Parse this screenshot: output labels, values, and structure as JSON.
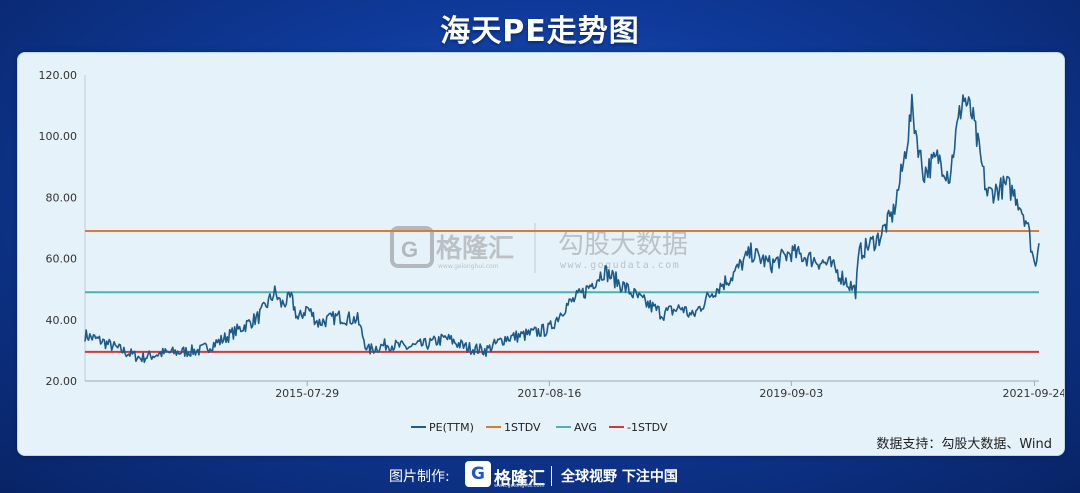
{
  "header": {
    "title": "海天PE走势图"
  },
  "watermark": {
    "brand": "格隆汇",
    "brand_sub": "www.gelonghui.com",
    "product": "勾股大数据",
    "url": "www.gogudata.com"
  },
  "source_note": "数据支持：勾股大数据、Wind",
  "footer": {
    "credit_label": "图片制作:",
    "brand": "格隆汇",
    "brand_sub": "www.gelonghui.com",
    "slogan": "全球视野 下注中国"
  },
  "chart_data": {
    "type": "line",
    "title": "",
    "xlabel": "",
    "ylabel": "",
    "ylim": [
      20,
      120
    ],
    "xlim": [
      "2013-09-10",
      "2021-10-08"
    ],
    "yticks": [
      "20.00",
      "40.00",
      "60.00",
      "80.00",
      "100.00",
      "120.00"
    ],
    "xticks": [
      "2015-07-29",
      "2017-08-16",
      "2019-09-03",
      "2021-09-24"
    ],
    "grid": false,
    "legend": "bottom-center",
    "series": [
      {
        "name": "PE(TTM)",
        "color": "#1c5a8a",
        "x": [
          "2013-09-10",
          "2013-11-01",
          "2014-01-01",
          "2014-03-01",
          "2014-05-01",
          "2014-07-01",
          "2014-09-01",
          "2014-11-01",
          "2015-01-01",
          "2015-03-01",
          "2015-04-20",
          "2015-05-10",
          "2015-06-10",
          "2015-07-01",
          "2015-07-29",
          "2015-09-01",
          "2015-11-01",
          "2016-01-01",
          "2016-02-01",
          "2016-04-01",
          "2016-06-01",
          "2016-08-01",
          "2016-10-01",
          "2016-12-01",
          "2017-02-01",
          "2017-04-01",
          "2017-06-01",
          "2017-08-16",
          "2017-10-01",
          "2017-12-01",
          "2018-02-01",
          "2018-04-01",
          "2018-06-01",
          "2018-08-01",
          "2018-10-01",
          "2018-11-01",
          "2019-01-01",
          "2019-03-01",
          "2019-05-01",
          "2019-07-01",
          "2019-09-03",
          "2019-11-01",
          "2020-01-01",
          "2020-03-20",
          "2020-04-01",
          "2020-06-01",
          "2020-07-15",
          "2020-08-15",
          "2020-09-10",
          "2020-10-15",
          "2020-12-01",
          "2021-01-05",
          "2021-01-20",
          "2021-02-15",
          "2021-03-15",
          "2021-05-01",
          "2021-07-01",
          "2021-08-01",
          "2021-09-01",
          "2021-09-24",
          "2021-10-08"
        ],
        "values": [
          35,
          33,
          30,
          27.5,
          29,
          29.5,
          30,
          33,
          37,
          41,
          49,
          45,
          47,
          40,
          44,
          39,
          41,
          40,
          30,
          32,
          31,
          32,
          34,
          31,
          30,
          34,
          35,
          37,
          44,
          49,
          56,
          51,
          46,
          42,
          44,
          41,
          49,
          54,
          62,
          58,
          62,
          60,
          58,
          49.5,
          62,
          67,
          75,
          91,
          109,
          88,
          93,
          87,
          98,
          113,
          107,
          81,
          84,
          80,
          72,
          58,
          65
        ]
      },
      {
        "name": "1STDV",
        "color": "#e0782f",
        "value": 69
      },
      {
        "name": "AVG",
        "color": "#4fb0b0",
        "value": 49
      },
      {
        "name": "-1STDV",
        "color": "#d23a3a",
        "value": 29.5
      }
    ]
  }
}
